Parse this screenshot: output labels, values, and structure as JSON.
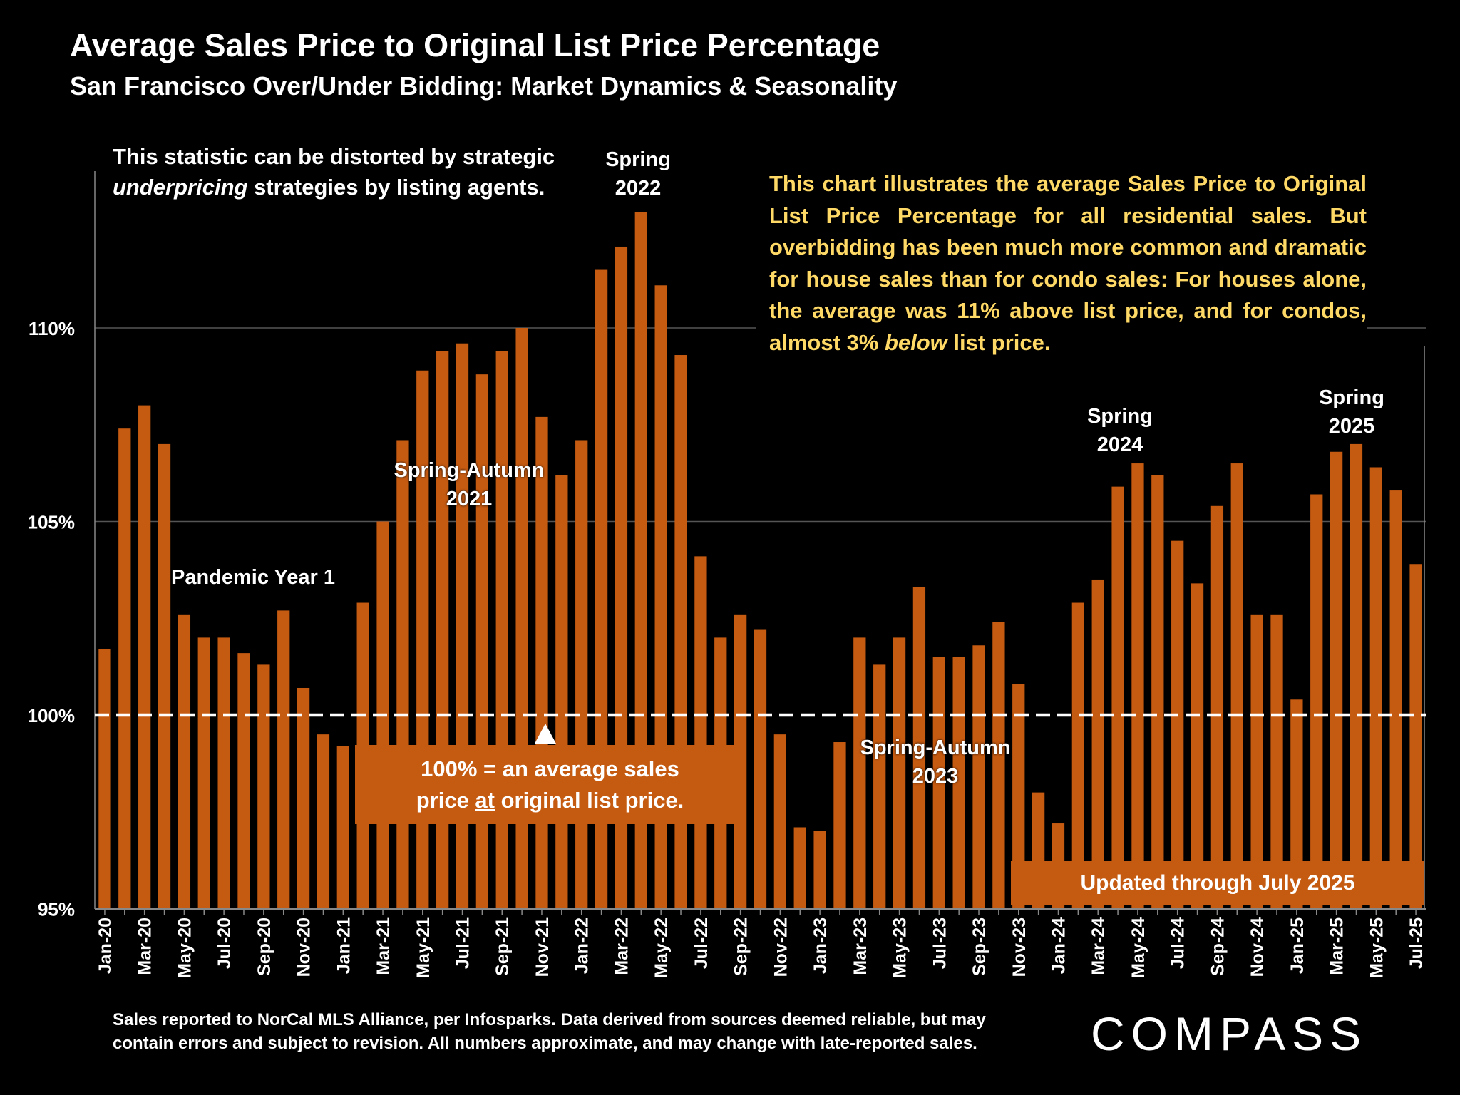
{
  "header": {
    "title": "Average Sales Price to Original List Price Percentage",
    "subtitle": "San Francisco Over/Under Bidding: Market Dynamics & Seasonality"
  },
  "notes": {
    "distortion_line1": "This statistic can be distorted by strategic",
    "distortion_em": "underpricing",
    "distortion_line2_rest": " strategies by listing agents.",
    "explain_part1": "This chart illustrates the average Sales Price to Original List Price Percentage for all residential sales. But overbidding has been much more common and dramatic for house sales than for condo sales:  For houses alone, the average was 11% above list price, and for condos, almost 3% ",
    "explain_em": "below",
    "explain_part2": " list price.",
    "box100_line1": "100% = an average sales",
    "box100_pre": "price ",
    "box100_u": "at",
    "box100_post": " original list price.",
    "updated": "Updated through July 2025"
  },
  "annotations": {
    "spring2022": [
      "Spring",
      "2022"
    ],
    "sa2021": [
      "Spring-Autumn",
      "2021"
    ],
    "pandemic": "Pandemic Year 1",
    "sa2023": [
      "Spring-Autumn",
      "2023"
    ],
    "spring2024": [
      "Spring",
      "2024"
    ],
    "spring2025": [
      "Spring",
      "2025"
    ]
  },
  "footer": {
    "line1": "Sales reported to NorCal MLS Alliance, per Infosparks. Data derived from sources deemed reliable, but may",
    "line2": "contain errors and subject to revision. All numbers approximate, and may change with late-reported sales.",
    "logo": "COMPASS"
  },
  "colors": {
    "bar": "#C55A11",
    "annotation": "#FFD966",
    "reference": "#FFFFFF"
  },
  "chart_data": {
    "type": "bar",
    "title": "Average Sales Price to Original List Price Percentage",
    "ylabel": "",
    "xlabel": "",
    "ylim": [
      95,
      113.5
    ],
    "yticks": [
      95,
      100,
      105,
      110
    ],
    "ytick_labels": [
      "95%",
      "100%",
      "105%",
      "110%"
    ],
    "reference_line": 100,
    "grid": true,
    "categories": [
      "Jan-20",
      "Feb-20",
      "Mar-20",
      "Apr-20",
      "May-20",
      "Jun-20",
      "Jul-20",
      "Aug-20",
      "Sep-20",
      "Oct-20",
      "Nov-20",
      "Dec-20",
      "Jan-21",
      "Feb-21",
      "Mar-21",
      "Apr-21",
      "May-21",
      "Jun-21",
      "Jul-21",
      "Aug-21",
      "Sep-21",
      "Oct-21",
      "Nov-21",
      "Dec-21",
      "Jan-22",
      "Feb-22",
      "Mar-22",
      "Apr-22",
      "May-22",
      "Jun-22",
      "Jul-22",
      "Aug-22",
      "Sep-22",
      "Oct-22",
      "Nov-22",
      "Dec-22",
      "Jan-23",
      "Feb-23",
      "Mar-23",
      "Apr-23",
      "May-23",
      "Jun-23",
      "Jul-23",
      "Aug-23",
      "Sep-23",
      "Oct-23",
      "Nov-23",
      "Dec-23",
      "Jan-24",
      "Feb-24",
      "Mar-24",
      "Apr-24",
      "May-24",
      "Jun-24",
      "Jul-24",
      "Aug-24",
      "Sep-24",
      "Oct-24",
      "Nov-24",
      "Dec-24",
      "Jan-25",
      "Feb-25",
      "Mar-25",
      "Apr-25",
      "May-25",
      "Jun-25",
      "Jul-25"
    ],
    "values": [
      101.7,
      107.4,
      108.0,
      107.0,
      102.6,
      102.0,
      102.0,
      101.6,
      101.3,
      102.7,
      100.7,
      99.5,
      99.2,
      102.9,
      105.0,
      107.1,
      108.9,
      109.4,
      109.6,
      108.8,
      109.4,
      110.0,
      107.7,
      106.2,
      107.1,
      111.5,
      112.1,
      113.0,
      111.1,
      109.3,
      104.1,
      102.0,
      102.6,
      102.2,
      99.5,
      97.1,
      97.0,
      99.3,
      102.0,
      101.3,
      102.0,
      103.3,
      101.5,
      101.5,
      101.8,
      102.4,
      100.8,
      98.0,
      97.2,
      102.9,
      103.5,
      105.9,
      106.5,
      106.2,
      104.5,
      103.4,
      105.4,
      106.5,
      102.6,
      102.6,
      100.4,
      105.7,
      106.8,
      107.0,
      106.4,
      105.8,
      103.9
    ]
  }
}
